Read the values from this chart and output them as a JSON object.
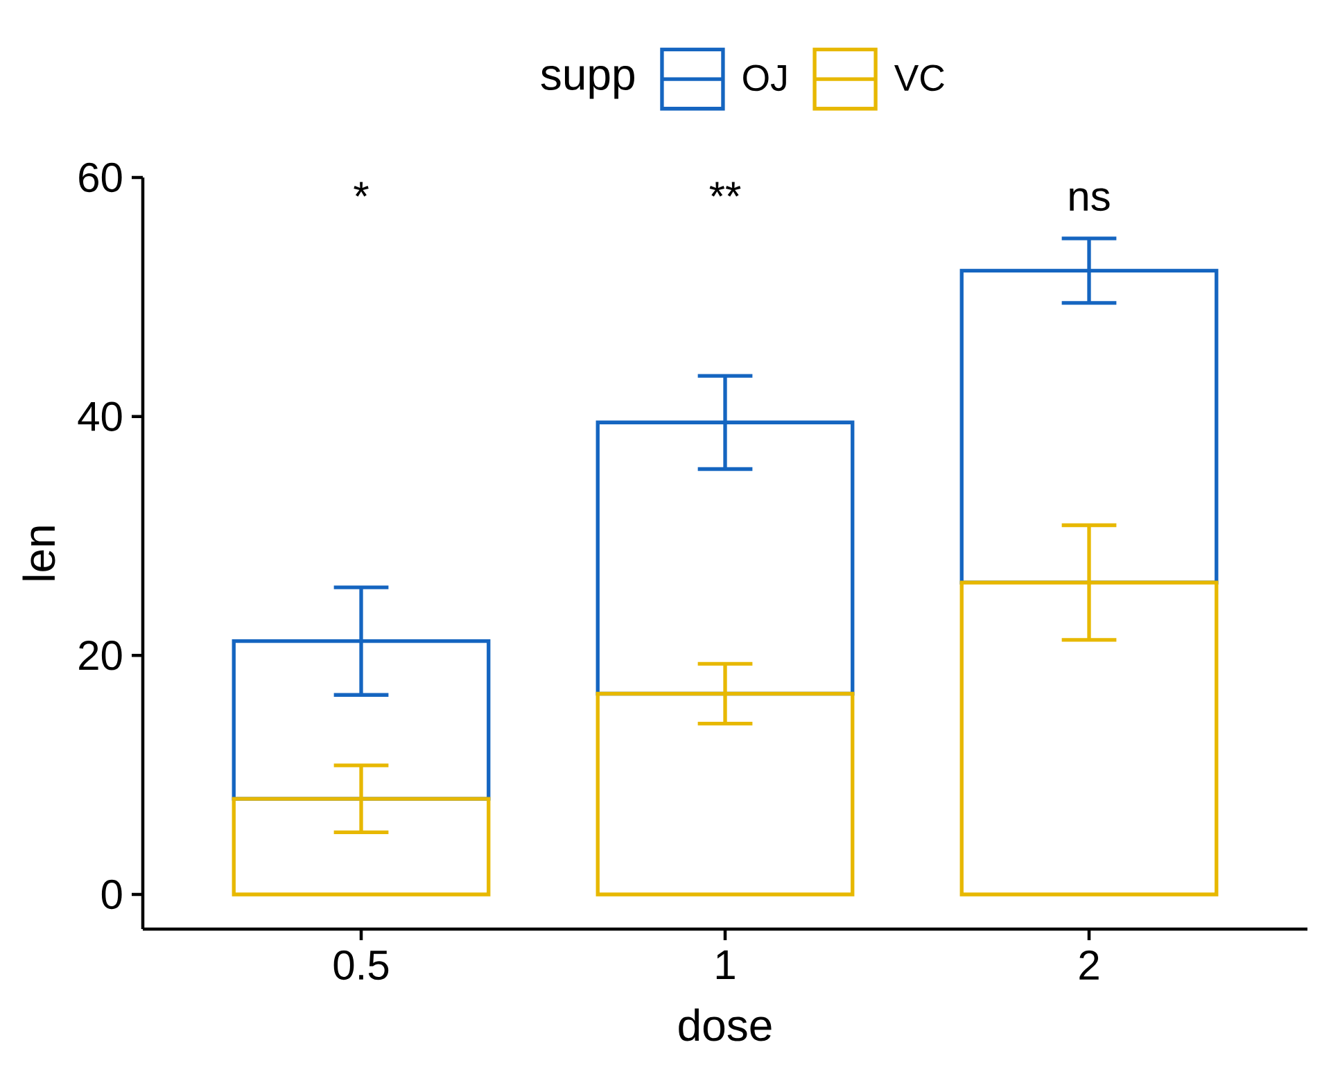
{
  "chart_data": {
    "type": "bar",
    "xlabel": "dose",
    "ylabel": "len",
    "legend_title": "supp",
    "categories": [
      "0.5",
      "1",
      "2"
    ],
    "stacked": true,
    "series": [
      {
        "name": "VC",
        "color": "#E7B800",
        "values": [
          8.0,
          16.8,
          26.1
        ],
        "errors": [
          2.8,
          2.5,
          4.8
        ]
      },
      {
        "name": "OJ",
        "color": "#1565C0",
        "values": [
          13.2,
          22.7,
          26.1
        ],
        "errors": [
          4.5,
          3.9,
          2.7
        ]
      }
    ],
    "ylim": [
      -2.9,
      60
    ],
    "yticks": [
      0,
      20,
      40,
      60
    ],
    "legend": "top",
    "annotations": [
      "*",
      "**",
      "ns"
    ]
  }
}
